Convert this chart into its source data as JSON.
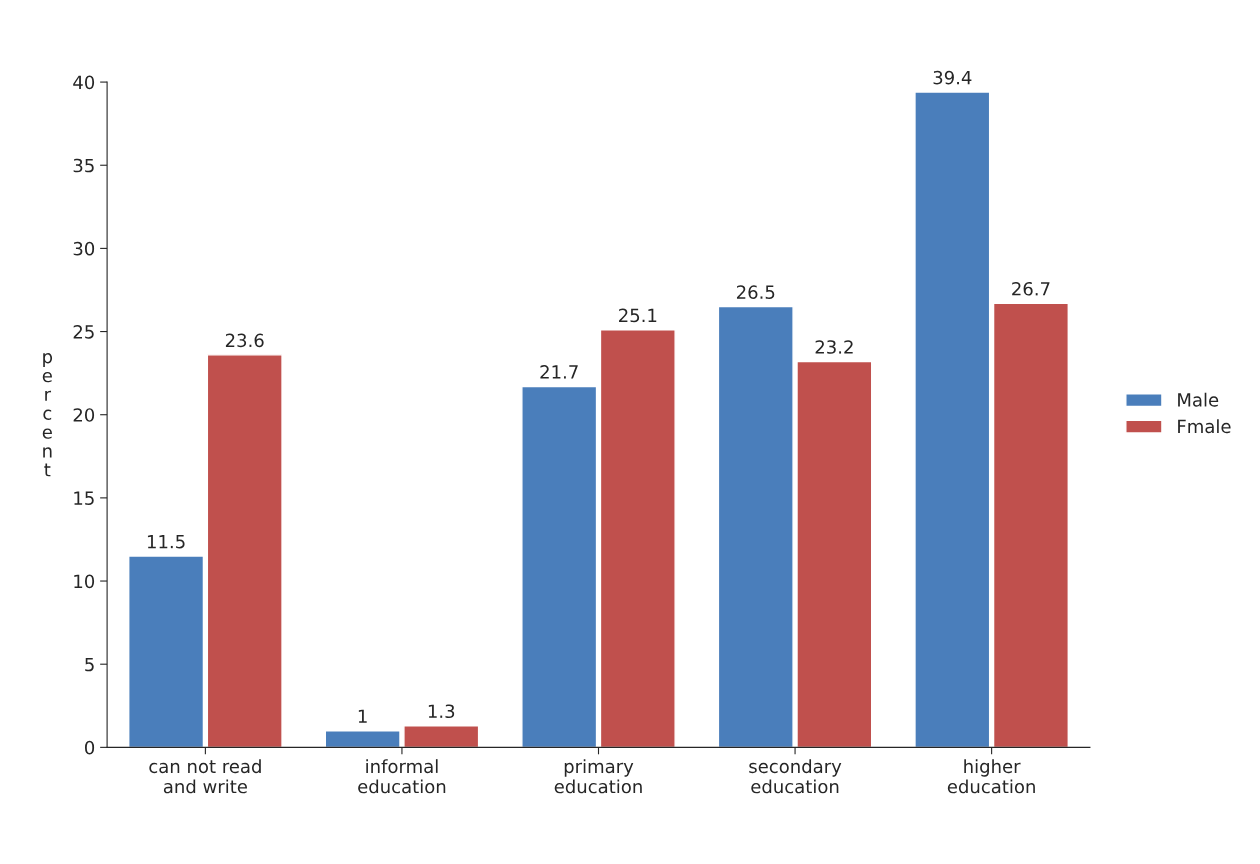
{
  "chart_data": {
    "type": "bar",
    "ylabel": "percent",
    "categories": [
      "can not read\nand write",
      "informal\neducation",
      "primary\neducation",
      "secondary\neducation",
      "higher\neducation"
    ],
    "series": [
      {
        "name": "Male",
        "color": "#4a7ebb",
        "values": [
          11.5,
          1,
          21.7,
          26.5,
          39.4
        ]
      },
      {
        "name": "Fmale",
        "color": "#c0504d",
        "values": [
          23.6,
          1.3,
          25.1,
          23.2,
          26.7
        ]
      }
    ],
    "ylim": [
      0,
      40
    ],
    "yticks": [
      0,
      5,
      10,
      15,
      20,
      25,
      30,
      35,
      40
    ],
    "data_labels": true,
    "grid": false,
    "legend": "right"
  }
}
